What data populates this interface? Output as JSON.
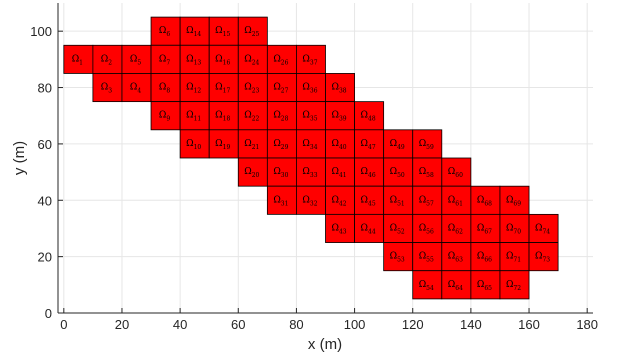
{
  "chart_data": {
    "type": "heatmap",
    "title": "",
    "xlabel": "x (m)",
    "ylabel": "y (m)",
    "xlim": [
      -2,
      182
    ],
    "ylim": [
      0,
      110
    ],
    "xticks": [
      0,
      20,
      40,
      60,
      80,
      100,
      120,
      140,
      160,
      180
    ],
    "yticks": [
      0,
      20,
      40,
      60,
      80,
      100
    ],
    "grid": true,
    "cell_size": 10,
    "cell_color": "#ff0000",
    "edge_color": "#000000",
    "symbol": "Ω",
    "cells": [
      {
        "id": "6",
        "x": 35,
        "y": 100
      },
      {
        "id": "14",
        "x": 45,
        "y": 100
      },
      {
        "id": "15",
        "x": 55,
        "y": 100
      },
      {
        "id": "25",
        "x": 65,
        "y": 100
      },
      {
        "id": "1",
        "x": 5,
        "y": 90
      },
      {
        "id": "2",
        "x": 15,
        "y": 90
      },
      {
        "id": "5",
        "x": 25,
        "y": 90
      },
      {
        "id": "7",
        "x": 35,
        "y": 90
      },
      {
        "id": "13",
        "x": 45,
        "y": 90
      },
      {
        "id": "16",
        "x": 55,
        "y": 90
      },
      {
        "id": "24",
        "x": 65,
        "y": 90
      },
      {
        "id": "26",
        "x": 75,
        "y": 90
      },
      {
        "id": "37",
        "x": 85,
        "y": 90
      },
      {
        "id": "3",
        "x": 15,
        "y": 80
      },
      {
        "id": "4",
        "x": 25,
        "y": 80
      },
      {
        "id": "8",
        "x": 35,
        "y": 80
      },
      {
        "id": "12",
        "x": 45,
        "y": 80
      },
      {
        "id": "17",
        "x": 55,
        "y": 80
      },
      {
        "id": "23",
        "x": 65,
        "y": 80
      },
      {
        "id": "27",
        "x": 75,
        "y": 80
      },
      {
        "id": "36",
        "x": 85,
        "y": 80
      },
      {
        "id": "38",
        "x": 95,
        "y": 80
      },
      {
        "id": "9",
        "x": 35,
        "y": 70
      },
      {
        "id": "11",
        "x": 45,
        "y": 70
      },
      {
        "id": "18",
        "x": 55,
        "y": 70
      },
      {
        "id": "22",
        "x": 65,
        "y": 70
      },
      {
        "id": "28",
        "x": 75,
        "y": 70
      },
      {
        "id": "35",
        "x": 85,
        "y": 70
      },
      {
        "id": "39",
        "x": 95,
        "y": 70
      },
      {
        "id": "48",
        "x": 105,
        "y": 70
      },
      {
        "id": "10",
        "x": 45,
        "y": 60
      },
      {
        "id": "19",
        "x": 55,
        "y": 60
      },
      {
        "id": "21",
        "x": 65,
        "y": 60
      },
      {
        "id": "29",
        "x": 75,
        "y": 60
      },
      {
        "id": "34",
        "x": 85,
        "y": 60
      },
      {
        "id": "40",
        "x": 95,
        "y": 60
      },
      {
        "id": "47",
        "x": 105,
        "y": 60
      },
      {
        "id": "49",
        "x": 115,
        "y": 60
      },
      {
        "id": "59",
        "x": 125,
        "y": 60
      },
      {
        "id": "20",
        "x": 65,
        "y": 50
      },
      {
        "id": "30",
        "x": 75,
        "y": 50
      },
      {
        "id": "33",
        "x": 85,
        "y": 50
      },
      {
        "id": "41",
        "x": 95,
        "y": 50
      },
      {
        "id": "46",
        "x": 105,
        "y": 50
      },
      {
        "id": "50",
        "x": 115,
        "y": 50
      },
      {
        "id": "58",
        "x": 125,
        "y": 50
      },
      {
        "id": "60",
        "x": 135,
        "y": 50
      },
      {
        "id": "31",
        "x": 75,
        "y": 40
      },
      {
        "id": "32",
        "x": 85,
        "y": 40
      },
      {
        "id": "42",
        "x": 95,
        "y": 40
      },
      {
        "id": "45",
        "x": 105,
        "y": 40
      },
      {
        "id": "51",
        "x": 115,
        "y": 40
      },
      {
        "id": "57",
        "x": 125,
        "y": 40
      },
      {
        "id": "61",
        "x": 135,
        "y": 40
      },
      {
        "id": "68",
        "x": 145,
        "y": 40
      },
      {
        "id": "69",
        "x": 155,
        "y": 40
      },
      {
        "id": "43",
        "x": 95,
        "y": 30
      },
      {
        "id": "44",
        "x": 105,
        "y": 30
      },
      {
        "id": "52",
        "x": 115,
        "y": 30
      },
      {
        "id": "56",
        "x": 125,
        "y": 30
      },
      {
        "id": "62",
        "x": 135,
        "y": 30
      },
      {
        "id": "67",
        "x": 145,
        "y": 30
      },
      {
        "id": "70",
        "x": 155,
        "y": 30
      },
      {
        "id": "74",
        "x": 165,
        "y": 30
      },
      {
        "id": "53",
        "x": 115,
        "y": 20
      },
      {
        "id": "55",
        "x": 125,
        "y": 20
      },
      {
        "id": "63",
        "x": 135,
        "y": 20
      },
      {
        "id": "66",
        "x": 145,
        "y": 20
      },
      {
        "id": "71",
        "x": 155,
        "y": 20
      },
      {
        "id": "73",
        "x": 165,
        "y": 20
      },
      {
        "id": "54",
        "x": 125,
        "y": 10
      },
      {
        "id": "64",
        "x": 135,
        "y": 10
      },
      {
        "id": "65",
        "x": 145,
        "y": 10
      },
      {
        "id": "72",
        "x": 155,
        "y": 10
      }
    ]
  }
}
